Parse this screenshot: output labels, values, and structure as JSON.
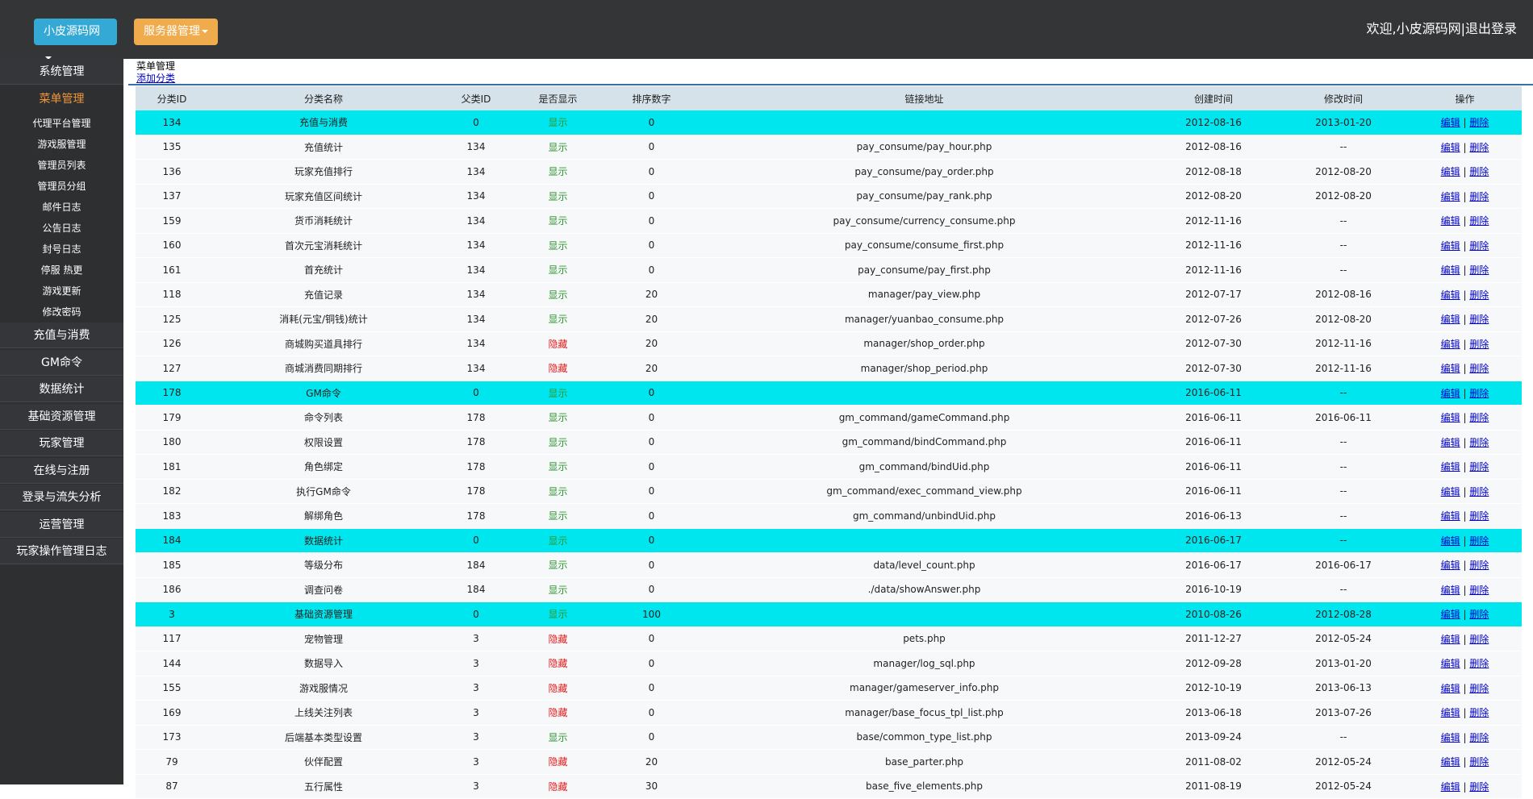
{
  "header": {
    "site_button": "小皮源码网",
    "server_button": "服务器管理",
    "welcome": "欢迎,小皮源码网",
    "separator": "|",
    "logout": "退出登录"
  },
  "sidebar": {
    "items": [
      {
        "label": "系统管理",
        "level": "top"
      },
      {
        "label": "菜单管理",
        "level": "active"
      },
      {
        "label": "代理平台管理",
        "level": "sub"
      },
      {
        "label": "游戏服管理",
        "level": "sub"
      },
      {
        "label": "管理员列表",
        "level": "sub"
      },
      {
        "label": "管理员分组",
        "level": "sub"
      },
      {
        "label": "邮件日志",
        "level": "sub"
      },
      {
        "label": "公告日志",
        "level": "sub"
      },
      {
        "label": "封号日志",
        "level": "sub"
      },
      {
        "label": "停服 热更",
        "level": "sub"
      },
      {
        "label": "游戏更新",
        "level": "sub"
      },
      {
        "label": "修改密码",
        "level": "sub"
      },
      {
        "label": "充值与消费",
        "level": "top"
      },
      {
        "label": "GM命令",
        "level": "top"
      },
      {
        "label": "数据统计",
        "level": "top"
      },
      {
        "label": "基础资源管理",
        "level": "top"
      },
      {
        "label": "玩家管理",
        "level": "top"
      },
      {
        "label": "在线与注册",
        "level": "top"
      },
      {
        "label": "登录与流失分析",
        "level": "top"
      },
      {
        "label": "运营管理",
        "level": "top"
      },
      {
        "label": "玩家操作管理日志",
        "level": "top"
      }
    ]
  },
  "content": {
    "breadcrumb": "菜单管理",
    "add_link": "添加分类"
  },
  "table": {
    "columns": [
      "分类ID",
      "分类名称",
      "父类ID",
      "是否显示",
      "排序数字",
      "链接地址",
      "创建时间",
      "修改时间",
      "操作"
    ],
    "op_edit": "编辑",
    "op_sep": "|",
    "op_delete": "删除",
    "status_colors": {
      "显示": "#2e962e",
      "隐藏": "#e01e1e"
    },
    "highlight_color": "#00e6ee",
    "rows": [
      [
        134,
        "充值与消费",
        0,
        "显示",
        0,
        null,
        "2012-08-16",
        "2013-01-20"
      ],
      [
        135,
        "充值统计",
        134,
        "显示",
        0,
        "pay_consume/pay_hour.php",
        "2012-08-16",
        "--"
      ],
      [
        136,
        "玩家充值排行",
        134,
        "显示",
        0,
        "pay_consume/pay_order.php",
        "2012-08-18",
        "2012-08-20"
      ],
      [
        137,
        "玩家充值区间统计",
        134,
        "显示",
        0,
        "pay_consume/pay_rank.php",
        "2012-08-20",
        "2012-08-20"
      ],
      [
        159,
        "货币消耗统计",
        134,
        "显示",
        0,
        "pay_consume/currency_consume.php",
        "2012-11-16",
        "--"
      ],
      [
        160,
        "首次元宝消耗统计",
        134,
        "显示",
        0,
        "pay_consume/consume_first.php",
        "2012-11-16",
        "--"
      ],
      [
        161,
        "首充统计",
        134,
        "显示",
        0,
        "pay_consume/pay_first.php",
        "2012-11-16",
        "--"
      ],
      [
        118,
        "充值记录",
        134,
        "显示",
        20,
        "manager/pay_view.php",
        "2012-07-17",
        "2012-08-16"
      ],
      [
        125,
        "消耗(元宝/铜钱)统计",
        134,
        "显示",
        20,
        "manager/yuanbao_consume.php",
        "2012-07-26",
        "2012-08-20"
      ],
      [
        126,
        "商城购买道具排行",
        134,
        "隐藏",
        20,
        "manager/shop_order.php",
        "2012-07-30",
        "2012-11-16"
      ],
      [
        127,
        "商城消费同期排行",
        134,
        "隐藏",
        20,
        "manager/shop_period.php",
        "2012-07-30",
        "2012-11-16"
      ],
      [
        178,
        "GM命令",
        0,
        "显示",
        0,
        null,
        "2016-06-11",
        "--"
      ],
      [
        179,
        "命令列表",
        178,
        "显示",
        0,
        "gm_command/gameCommand.php",
        "2016-06-11",
        "2016-06-11"
      ],
      [
        180,
        "权限设置",
        178,
        "显示",
        0,
        "gm_command/bindCommand.php",
        "2016-06-11",
        "--"
      ],
      [
        181,
        "角色绑定",
        178,
        "显示",
        0,
        "gm_command/bindUid.php",
        "2016-06-11",
        "--"
      ],
      [
        182,
        "执行GM命令",
        178,
        "显示",
        0,
        "gm_command/exec_command_view.php",
        "2016-06-11",
        "--"
      ],
      [
        183,
        "解绑角色",
        178,
        "显示",
        0,
        "gm_command/unbindUid.php",
        "2016-06-13",
        "--"
      ],
      [
        184,
        "数据统计",
        0,
        "显示",
        0,
        null,
        "2016-06-17",
        "--"
      ],
      [
        185,
        "等级分布",
        184,
        "显示",
        0,
        "data/level_count.php",
        "2016-06-17",
        "2016-06-17"
      ],
      [
        186,
        "调查问卷",
        184,
        "显示",
        0,
        "./data/showAnswer.php",
        "2016-10-19",
        "--"
      ],
      [
        3,
        "基础资源管理",
        0,
        "显示",
        100,
        null,
        "2010-08-26",
        "2012-08-28"
      ],
      [
        117,
        "宠物管理",
        3,
        "隐藏",
        0,
        "pets.php",
        "2011-12-27",
        "2012-05-24"
      ],
      [
        144,
        "数据导入",
        3,
        "隐藏",
        0,
        "manager/log_sql.php",
        "2012-09-28",
        "2013-01-20"
      ],
      [
        155,
        "游戏服情况",
        3,
        "隐藏",
        0,
        "manager/gameserver_info.php",
        "2012-10-19",
        "2013-06-13"
      ],
      [
        169,
        "上线关注列表",
        3,
        "隐藏",
        0,
        "manager/base_focus_tpl_list.php",
        "2013-06-18",
        "2013-07-26"
      ],
      [
        173,
        "后端基本类型设置",
        3,
        "显示",
        0,
        "base/common_type_list.php",
        "2013-09-24",
        "--"
      ],
      [
        79,
        "伙伴配置",
        3,
        "隐藏",
        20,
        "base_parter.php",
        "2011-08-02",
        "2012-05-24"
      ],
      [
        87,
        "五行属性",
        3,
        "隐藏",
        30,
        "base_five_elements.php",
        "2011-08-19",
        "2012-05-24"
      ]
    ]
  }
}
